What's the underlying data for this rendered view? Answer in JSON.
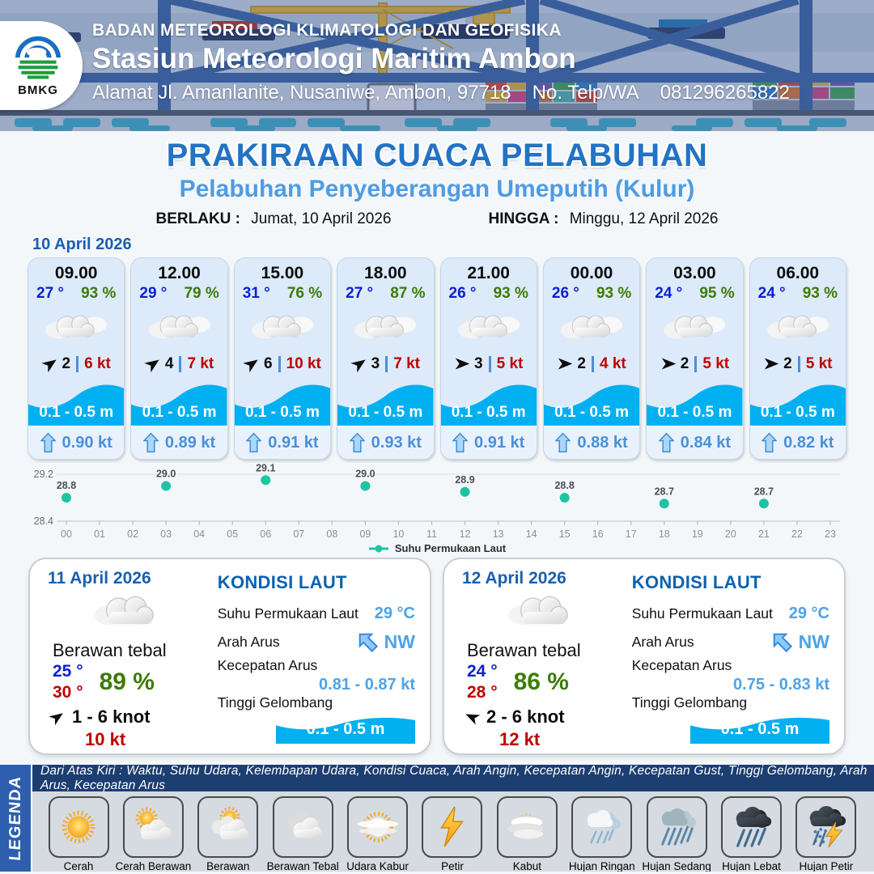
{
  "header": {
    "agency": "BADAN METEOROLOGI KLIMATOLOGI DAN GEOFISIKA",
    "station": "Stasiun Meteorologi Maritim Ambon",
    "address": "Alamat Jl. Amanlanite, Nusaniwe, Ambon, 97718",
    "phone_label": "No. Telp/WA",
    "phone": "081296265822",
    "logo_text": "BMKG"
  },
  "title": {
    "main": "PRAKIRAAN CUACA PELABUHAN",
    "subtitle": "Pelabuhan Penyeberangan Umeputih (Kulur)",
    "berlaku_label": "BERLAKU :",
    "berlaku_value": "Jumat, 10 April 2026",
    "hingga_label": "HINGGA :",
    "hingga_value": "Minggu, 12 April 2026"
  },
  "forecast_date": "10 April 2026",
  "hourly": [
    {
      "time": "09.00",
      "temp": "27 °",
      "humidity": "93 %",
      "condition": "berawan-tebal",
      "wind_speed": "2",
      "gust": "6 kt",
      "wave": "0.1 - 0.5 m",
      "current": "0.90 kt",
      "dir_deg": -35
    },
    {
      "time": "12.00",
      "temp": "29 °",
      "humidity": "79 %",
      "condition": "berawan-tebal",
      "wind_speed": "4",
      "gust": "7 kt",
      "wave": "0.1 - 0.5 m",
      "current": "0.89 kt",
      "dir_deg": -35
    },
    {
      "time": "15.00",
      "temp": "31 °",
      "humidity": "76 %",
      "condition": "berawan-tebal",
      "wind_speed": "6",
      "gust": "10 kt",
      "wave": "0.1 - 0.5 m",
      "current": "0.91 kt",
      "dir_deg": -35
    },
    {
      "time": "18.00",
      "temp": "27 °",
      "humidity": "87 %",
      "condition": "berawan-tebal",
      "wind_speed": "3",
      "gust": "7 kt",
      "wave": "0.1 - 0.5 m",
      "current": "0.93 kt",
      "dir_deg": -35
    },
    {
      "time": "21.00",
      "temp": "26 °",
      "humidity": "93 %",
      "condition": "berawan-tebal",
      "wind_speed": "3",
      "gust": "5 kt",
      "wave": "0.1 - 0.5 m",
      "current": "0.91 kt",
      "dir_deg": 0
    },
    {
      "time": "00.00",
      "temp": "26 °",
      "humidity": "93 %",
      "condition": "berawan-tebal",
      "wind_speed": "2",
      "gust": "4 kt",
      "wave": "0.1 - 0.5 m",
      "current": "0.88 kt",
      "dir_deg": 0
    },
    {
      "time": "03.00",
      "temp": "24 °",
      "humidity": "95 %",
      "condition": "berawan-tebal",
      "wind_speed": "2",
      "gust": "5 kt",
      "wave": "0.1 - 0.5 m",
      "current": "0.84 kt",
      "dir_deg": 0
    },
    {
      "time": "06.00",
      "temp": "24 °",
      "humidity": "93 %",
      "condition": "berawan-tebal",
      "wind_speed": "2",
      "gust": "5 kt",
      "wave": "0.1 - 0.5 m",
      "current": "0.82 kt",
      "dir_deg": 0
    }
  ],
  "chart_data": {
    "type": "scatter",
    "x": [
      0,
      3,
      6,
      9,
      12,
      15,
      18,
      21
    ],
    "values": [
      28.8,
      29.0,
      29.1,
      29.0,
      28.9,
      28.8,
      28.7,
      28.7
    ],
    "x_ticks": [
      "00",
      "01",
      "02",
      "03",
      "04",
      "05",
      "06",
      "07",
      "08",
      "09",
      "10",
      "11",
      "12",
      "13",
      "14",
      "15",
      "16",
      "17",
      "18",
      "19",
      "20",
      "21",
      "22",
      "23"
    ],
    "y_ticks": [
      "29.2",
      "28.4"
    ],
    "ylim": [
      28.4,
      29.2
    ],
    "grid": true,
    "legend": "Suhu Permukaan Laut",
    "legend_position": "bottom-center",
    "point_color": "#1fc3a4",
    "title": "",
    "xlabel": "",
    "ylabel": ""
  },
  "daily": [
    {
      "date": "11 April 2026",
      "condition": "Berawan tebal",
      "temp_min": "25 °",
      "temp_max": "30 °",
      "humidity": "89 %",
      "wind_range": "1  - 6 knot",
      "gust": "10 kt",
      "dir_deg": -35,
      "sea": {
        "heading": "KONDISI LAUT",
        "sst_label": "Suhu Permukaan Laut",
        "sst": "29 °C",
        "dir_label": "Arah Arus",
        "dir": "NW",
        "speed_label": "Kecepatan Arus",
        "speed": "0.81 - 0.87 kt",
        "wave_label": "Tinggi Gelombang",
        "wave": "0.1 - 0.5 m"
      }
    },
    {
      "date": "12 April 2026",
      "condition": "Berawan tebal",
      "temp_min": "24 °",
      "temp_max": "28 °",
      "humidity": "86 %",
      "wind_range": "2  - 6 knot",
      "gust": "12 kt",
      "dir_deg": 205,
      "sea": {
        "heading": "KONDISI LAUT",
        "sst_label": "Suhu Permukaan Laut",
        "sst": "29 °C",
        "dir_label": "Arah Arus",
        "dir": "NW",
        "speed_label": "Kecepatan Arus",
        "speed": "0.75 - 0.83 kt",
        "wave_label": "Tinggi Gelombang",
        "wave": "0.1 - 0.5 m"
      }
    }
  ],
  "legend": {
    "ribbon": "LEGENDA",
    "description": "Dari Atas Kiri : Waktu, Suhu Udara, Kelembapan Udara, Kondisi Cuaca, Arah Angin, Kecepatan Angin, Kecepatan Gust, Tinggi Gelombang, Arah Arus, Kecepatan Arus",
    "items": [
      {
        "label": "Cerah",
        "icon": "sun"
      },
      {
        "label": "Cerah Berawan",
        "icon": "sun-cloud"
      },
      {
        "label": "Berawan",
        "icon": "cloud-sun"
      },
      {
        "label": "Berawan Tebal",
        "icon": "clouds"
      },
      {
        "label": "Udara Kabur",
        "icon": "hazy-sun"
      },
      {
        "label": "Petir",
        "icon": "lightning"
      },
      {
        "label": "Kabut",
        "icon": "fog"
      },
      {
        "label": "Hujan Ringan",
        "icon": "light-rain"
      },
      {
        "label": "Hujan Sedang",
        "icon": "moderate-rain"
      },
      {
        "label": "Hujan Lebat",
        "icon": "heavy-rain"
      },
      {
        "label": "Hujan Petir",
        "icon": "thunderstorm"
      }
    ]
  },
  "colors": {
    "title_blue": "#2373c4",
    "subtitle_blue": "#4f9ce2",
    "date_blue": "#1a5fb0",
    "temp_blue": "#0b1fd4",
    "humidity_green": "#3c7c05",
    "gust_red": "#c00000",
    "wave_cyan": "#00b0f0",
    "current_blue": "#4a90d9",
    "sea_value_blue": "#4da3e8",
    "chart_teal": "#1fc3a4",
    "navy_strip": "#1c3e70",
    "ribbon_blue": "#2e5fae"
  }
}
